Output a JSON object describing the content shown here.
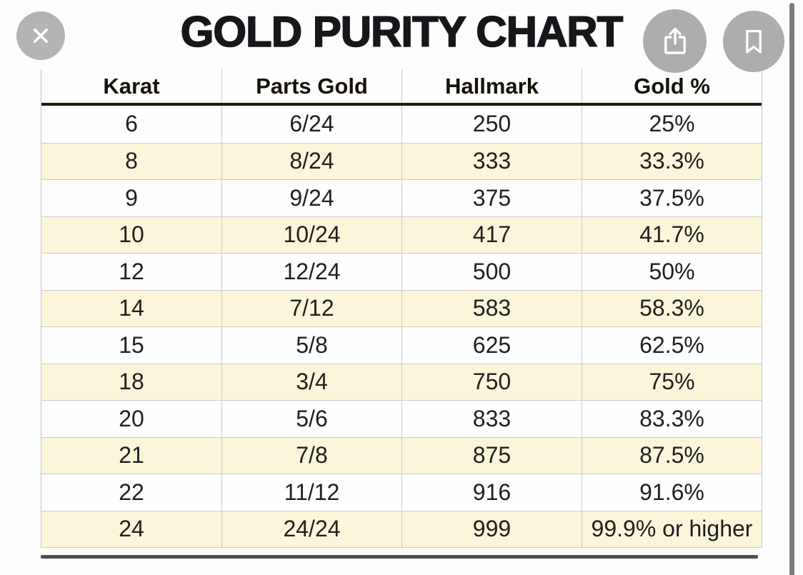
{
  "viewer": {
    "close_button": "close",
    "share_button": "share",
    "bookmark_button": "bookmark",
    "scrollbar": "vertical-scrollbar"
  },
  "title": "GOLD PURITY CHART",
  "table": {
    "columns": [
      "Karat",
      "Parts Gold",
      "Hallmark",
      "Gold %"
    ],
    "rows": [
      [
        "6",
        "6/24",
        "250",
        "25%"
      ],
      [
        "8",
        "8/24",
        "333",
        "33.3%"
      ],
      [
        "9",
        "9/24",
        "375",
        "37.5%"
      ],
      [
        "10",
        "10/24",
        "417",
        "41.7%"
      ],
      [
        "12",
        "12/24",
        "500",
        "50%"
      ],
      [
        "14",
        "7/12",
        "583",
        "58.3%"
      ],
      [
        "15",
        "5/8",
        "625",
        "62.5%"
      ],
      [
        "18",
        "3/4",
        "750",
        "75%"
      ],
      [
        "20",
        "5/6",
        "833",
        "83.3%"
      ],
      [
        "21",
        "7/8",
        "875",
        "87.5%"
      ],
      [
        "22",
        "11/12",
        "916",
        "91.6%"
      ],
      [
        "24",
        "24/24",
        "999",
        "99.9% or higher"
      ]
    ]
  },
  "chart_data": {
    "type": "table",
    "title": "GOLD PURITY CHART",
    "columns": [
      "Karat",
      "Parts Gold",
      "Hallmark",
      "Gold %"
    ],
    "rows": [
      [
        "6",
        "6/24",
        "250",
        "25%"
      ],
      [
        "8",
        "8/24",
        "333",
        "33.3%"
      ],
      [
        "9",
        "9/24",
        "375",
        "37.5%"
      ],
      [
        "10",
        "10/24",
        "417",
        "41.7%"
      ],
      [
        "12",
        "12/24",
        "500",
        "50%"
      ],
      [
        "14",
        "7/12",
        "583",
        "58.3%"
      ],
      [
        "15",
        "5/8",
        "625",
        "62.5%"
      ],
      [
        "18",
        "3/4",
        "750",
        "75%"
      ],
      [
        "20",
        "5/6",
        "833",
        "83.3%"
      ],
      [
        "21",
        "7/8",
        "875",
        "87.5%"
      ],
      [
        "22",
        "11/12",
        "916",
        "91.6%"
      ],
      [
        "24",
        "24/24",
        "999",
        "99.9% or higher"
      ]
    ]
  },
  "colors": {
    "header_gold_top": "#f9d952",
    "header_gold_bottom": "#edb013",
    "header_underline": "#201a08",
    "row_stripe_cream": "#fbf5d9",
    "grid_line": "#c9c9c9",
    "button_gray": "#b0b0b0",
    "scrollbar_gray": "#7c7c7c",
    "bottom_bar_gray": "#4e4e4e",
    "title_text": "#17171b",
    "cell_text": "#202020"
  }
}
